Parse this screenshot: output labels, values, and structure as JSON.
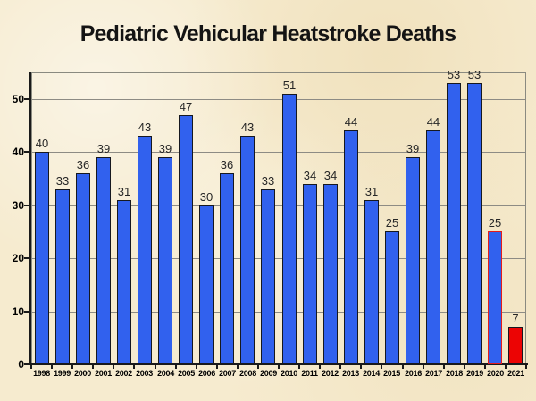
{
  "title": "Pediatric Vehicular Heatstroke Deaths",
  "chart_data": {
    "type": "bar",
    "title": "Pediatric Vehicular Heatstroke Deaths",
    "categories": [
      "1998",
      "1999",
      "2000",
      "2001",
      "2002",
      "2003",
      "2004",
      "2005",
      "2006",
      "2007",
      "2008",
      "2009",
      "2010",
      "2011",
      "2012",
      "2013",
      "2014",
      "2015",
      "2016",
      "2017",
      "2018",
      "2019",
      "2020",
      "2021"
    ],
    "values": [
      40,
      33,
      36,
      39,
      31,
      43,
      39,
      47,
      30,
      36,
      43,
      33,
      51,
      34,
      34,
      44,
      31,
      25,
      39,
      44,
      53,
      53,
      25,
      7
    ],
    "xlabel": "",
    "ylabel": "",
    "ylim": [
      0,
      55
    ],
    "yticks": [
      0,
      10,
      20,
      30,
      40,
      50
    ],
    "grid": true,
    "data_labels": true,
    "legend": "none",
    "bar_styles": {
      "default": {
        "fill": "#3161EE",
        "border": "#16181F"
      },
      "overrides": [
        {
          "category": "2020",
          "fill": "#3161EE",
          "border": "#E31B1B"
        },
        {
          "category": "2021",
          "fill": "#EC0404",
          "border": "#16181F"
        }
      ]
    }
  },
  "colors": {
    "background": "#F6EBCF",
    "plot_border": "#8A8A80",
    "gridline": "#8D8B84",
    "axis_line": "#1A1A1A",
    "value_label_text": "#262626",
    "axis_text": "#000000",
    "title_text": "#141414"
  }
}
